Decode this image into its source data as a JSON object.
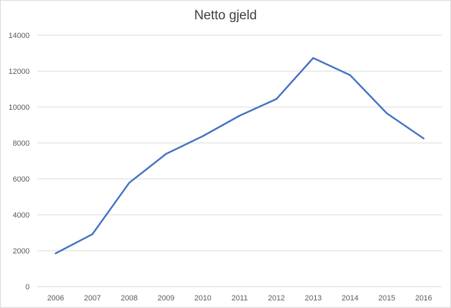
{
  "chart_data": {
    "type": "line",
    "title": "Netto gjeld",
    "xlabel": "",
    "ylabel": "",
    "categories": [
      "2006",
      "2007",
      "2008",
      "2009",
      "2010",
      "2011",
      "2012",
      "2013",
      "2014",
      "2015",
      "2016"
    ],
    "series": [
      {
        "values": [
          1850,
          2920,
          5780,
          7390,
          8380,
          9520,
          10450,
          12730,
          11780,
          9650,
          8250
        ],
        "color": "#4472c4"
      }
    ],
    "ylim": [
      0,
      14000
    ],
    "yticks": [
      0,
      2000,
      4000,
      6000,
      8000,
      10000,
      12000,
      14000
    ],
    "grid": true,
    "legend": "none"
  }
}
